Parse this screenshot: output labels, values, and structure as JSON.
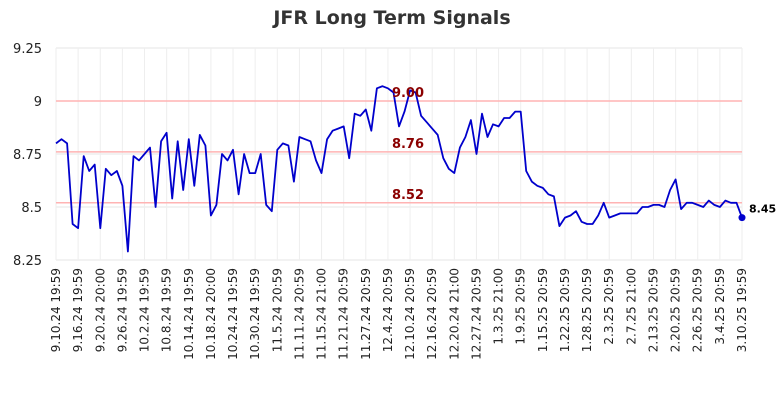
{
  "chart_data": {
    "type": "line",
    "title": "JFR Long Term Signals",
    "ylim": [
      8.25,
      9.25
    ],
    "y_ticks": [
      {
        "value": 8.25,
        "label": "8.25"
      },
      {
        "value": 8.5,
        "label": "8.5"
      },
      {
        "value": 8.75,
        "label": "8.75"
      },
      {
        "value": 9.0,
        "label": "9"
      },
      {
        "value": 9.25,
        "label": "9.25"
      }
    ],
    "x_tick_labels": [
      "9.10.24 19:59",
      "9.16.24 19:59",
      "9.20.24 20:00",
      "9.26.24 19:59",
      "10.2.24 19:59",
      "10.8.24 19:59",
      "10.14.24 19:59",
      "10.18.24 20:00",
      "10.24.24 19:59",
      "10.30.24 19:59",
      "11.5.24 20:59",
      "11.11.24 20:59",
      "11.15.24 21:00",
      "11.21.24 20:59",
      "11.27.24 20:59",
      "12.4.24 20:59",
      "12.10.24 20:59",
      "12.16.24 20:59",
      "12.20.24 21:00",
      "12.27.24 20:59",
      "1.3.25 21:00",
      "1.9.25 20:59",
      "1.15.25 20:59",
      "1.22.25 20:59",
      "1.28.25 20:59",
      "2.3.25 20:59",
      "2.7.25 21:00",
      "2.13.25 20:59",
      "2.20.25 20:59",
      "2.26.25 20:59",
      "3.4.25 20:59",
      "3.10.25 19:59"
    ],
    "series": [
      {
        "color": "#0000cc",
        "values": [
          8.8,
          8.82,
          8.8,
          8.42,
          8.4,
          8.74,
          8.67,
          8.7,
          8.4,
          8.68,
          8.65,
          8.67,
          8.6,
          8.29,
          8.74,
          8.72,
          8.75,
          8.78,
          8.5,
          8.81,
          8.85,
          8.54,
          8.81,
          8.58,
          8.82,
          8.6,
          8.84,
          8.79,
          8.46,
          8.51,
          8.75,
          8.72,
          8.77,
          8.56,
          8.75,
          8.66,
          8.66,
          8.75,
          8.51,
          8.48,
          8.77,
          8.8,
          8.79,
          8.62,
          8.83,
          8.82,
          8.81,
          8.72,
          8.66,
          8.82,
          8.86,
          8.87,
          8.88,
          8.73,
          8.94,
          8.93,
          8.96,
          8.86,
          9.06,
          9.07,
          9.06,
          9.04,
          8.88,
          8.95,
          9.05,
          9.04,
          8.93,
          8.9,
          8.87,
          8.84,
          8.73,
          8.68,
          8.66,
          8.78,
          8.83,
          8.91,
          8.75,
          8.94,
          8.83,
          8.89,
          8.88,
          8.92,
          8.92,
          8.95,
          8.95,
          8.67,
          8.62,
          8.6,
          8.59,
          8.56,
          8.55,
          8.41,
          8.45,
          8.46,
          8.48,
          8.43,
          8.42,
          8.42,
          8.46,
          8.52,
          8.45,
          8.46,
          8.47,
          8.47,
          8.47,
          8.47,
          8.5,
          8.5,
          8.51,
          8.51,
          8.5,
          8.58,
          8.63,
          8.49,
          8.52,
          8.52,
          8.51,
          8.5,
          8.53,
          8.51,
          8.5,
          8.53,
          8.52,
          8.52,
          8.45
        ]
      }
    ],
    "reference_lines": [
      {
        "value": 9.0,
        "label": "9.00",
        "color": "#ffb3b3"
      },
      {
        "value": 8.76,
        "label": "8.76",
        "color": "#ffb3b3"
      },
      {
        "value": 8.52,
        "label": "8.52",
        "color": "#ffb3b3"
      }
    ],
    "last_value_label": "8.45",
    "grid": true
  }
}
